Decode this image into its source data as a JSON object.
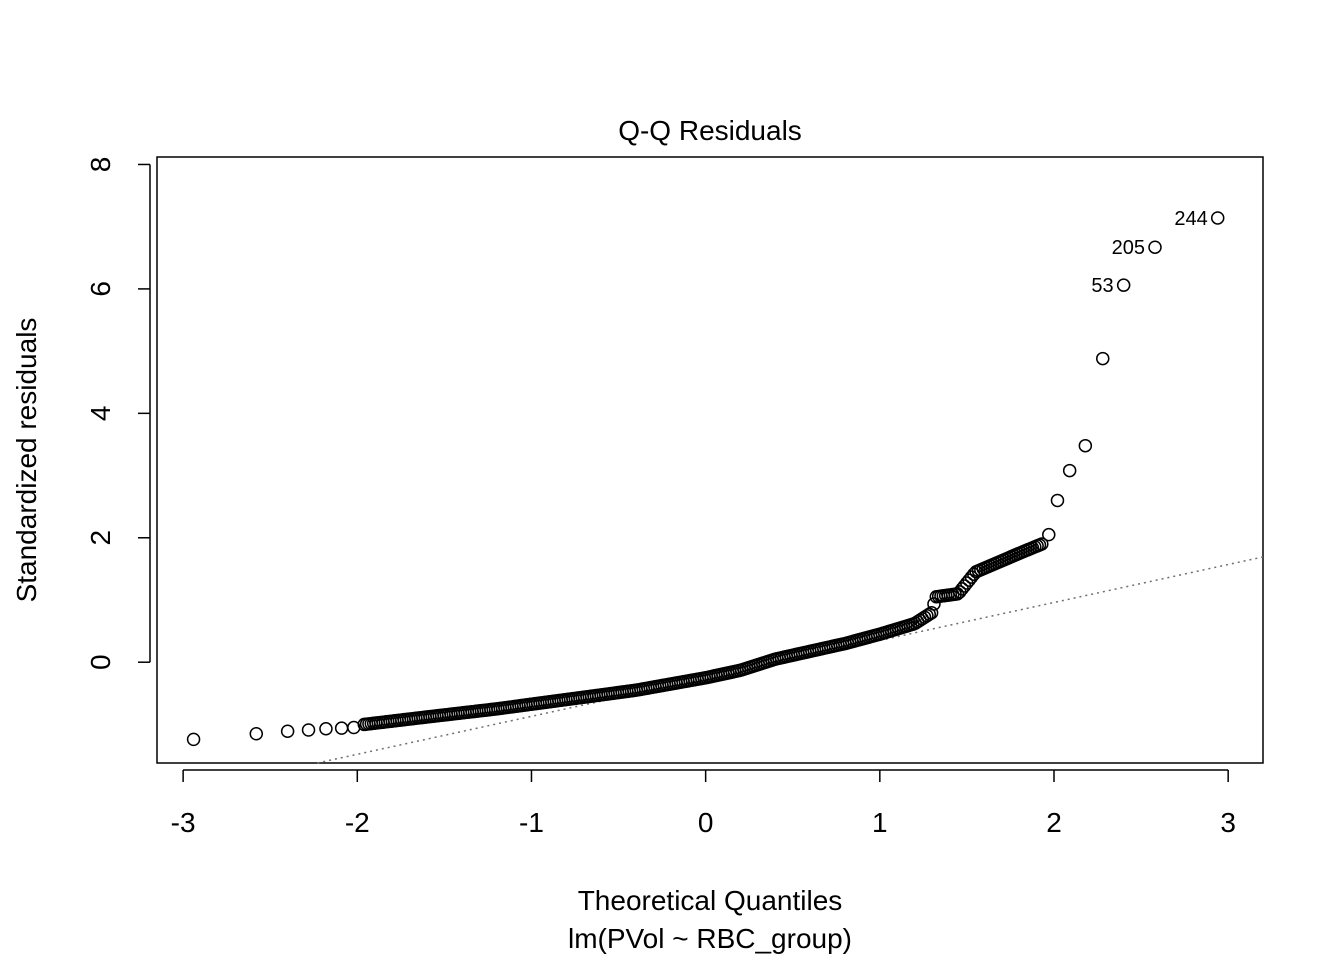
{
  "chart_data": {
    "type": "scatter",
    "title": "Q-Q Residuals",
    "xlabel": "Theoretical Quantiles",
    "ylabel": "Standardized residuals",
    "subtitle": "lm(PVol ~ RBC_group)",
    "xlim": [
      -3.15,
      3.2
    ],
    "ylim": [
      -1.62,
      8.12
    ],
    "x_ticks": [
      -3,
      -2,
      -1,
      0,
      1,
      2,
      3
    ],
    "y_ticks": [
      0,
      2,
      4,
      6,
      8
    ],
    "x_tick_labels": [
      "-3",
      "-2",
      "-1",
      "0",
      "1",
      "2",
      "3"
    ],
    "y_tick_labels": [
      "0",
      "2",
      "4",
      "6",
      "8"
    ],
    "reference_line": {
      "intercept": -0.26,
      "slope": 0.61,
      "style": "dotted",
      "color": "#6e6e6e"
    },
    "point_labels": [
      {
        "text": "244",
        "x": 2.94,
        "y": 7.14
      },
      {
        "text": "205",
        "x": 2.58,
        "y": 6.67
      },
      {
        "text": "53",
        "x": 2.4,
        "y": 6.06
      }
    ],
    "tail_points": [
      {
        "x": -2.94,
        "y": -1.24
      },
      {
        "x": -2.58,
        "y": -1.15
      },
      {
        "x": -2.4,
        "y": -1.11
      },
      {
        "x": -2.28,
        "y": -1.09
      },
      {
        "x": -2.18,
        "y": -1.07
      },
      {
        "x": -2.09,
        "y": -1.06
      },
      {
        "x": -2.02,
        "y": -1.05
      },
      {
        "x": 1.97,
        "y": 2.05
      },
      {
        "x": 2.02,
        "y": 2.6
      },
      {
        "x": 2.09,
        "y": 3.08
      },
      {
        "x": 2.18,
        "y": 3.48
      },
      {
        "x": 2.28,
        "y": 4.88
      },
      {
        "x": 2.4,
        "y": 6.06
      },
      {
        "x": 2.58,
        "y": 6.67
      },
      {
        "x": 2.94,
        "y": 7.14
      }
    ],
    "curve_knots": [
      {
        "x": -1.96,
        "y": -1.0
      },
      {
        "x": -1.6,
        "y": -0.88
      },
      {
        "x": -1.2,
        "y": -0.75
      },
      {
        "x": -0.8,
        "y": -0.6
      },
      {
        "x": -0.4,
        "y": -0.45
      },
      {
        "x": 0.0,
        "y": -0.25
      },
      {
        "x": 0.2,
        "y": -0.13
      },
      {
        "x": 0.4,
        "y": 0.05
      },
      {
        "x": 0.8,
        "y": 0.3
      },
      {
        "x": 1.0,
        "y": 0.45
      },
      {
        "x": 1.2,
        "y": 0.62
      },
      {
        "x": 1.3,
        "y": 0.8
      },
      {
        "x": 1.32,
        "y": 1.05
      },
      {
        "x": 1.45,
        "y": 1.1
      },
      {
        "x": 1.55,
        "y": 1.45
      },
      {
        "x": 1.8,
        "y": 1.75
      },
      {
        "x": 1.93,
        "y": 1.9
      }
    ],
    "n_points": 290
  }
}
